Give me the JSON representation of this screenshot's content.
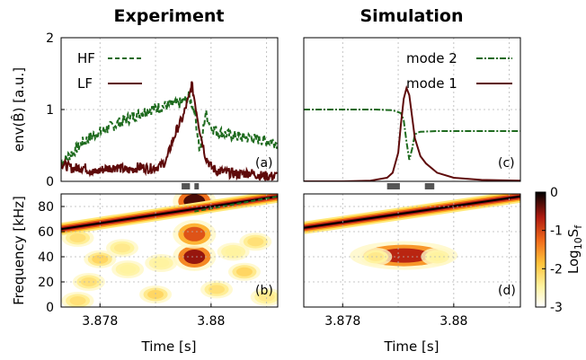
{
  "columns": [
    "Experiment",
    "Simulation"
  ],
  "chart_data": [
    {
      "id": "a",
      "type": "line",
      "panel_label": "(a)",
      "column": "Experiment",
      "ylabel": "env(B̂) [a.u.]",
      "xlabel": "",
      "xlim": [
        3.8773,
        3.8812
      ],
      "ylim": [
        0,
        2
      ],
      "yticks": [
        "0",
        "1",
        "2"
      ],
      "grid": true,
      "legend_position": "top-left",
      "legend_entries": [
        "HF",
        "LF"
      ],
      "series": [
        {
          "name": "HF",
          "color": "#1e6b1e",
          "dash": "5,3",
          "x": [
            3.8773,
            3.8775,
            3.8777,
            3.8779,
            3.8781,
            3.8783,
            3.8785,
            3.8787,
            3.8789,
            3.8791,
            3.8793,
            3.8795,
            3.8796,
            3.8797,
            3.8798,
            3.8799,
            3.88,
            3.8801,
            3.8803,
            3.8805,
            3.8807,
            3.8809,
            3.8811,
            3.8812
          ],
          "y": [
            0.25,
            0.4,
            0.55,
            0.65,
            0.72,
            0.8,
            0.87,
            0.94,
            1.0,
            1.04,
            1.07,
            1.1,
            1.18,
            1.0,
            0.4,
            0.95,
            0.75,
            0.7,
            0.65,
            0.62,
            0.6,
            0.58,
            0.55,
            0.53
          ]
        },
        {
          "name": "LF",
          "color": "#5e0a0a",
          "dash": "",
          "x": [
            3.8773,
            3.8775,
            3.8777,
            3.8779,
            3.8781,
            3.8783,
            3.8785,
            3.8787,
            3.8789,
            3.8791,
            3.8792,
            3.8793,
            3.8794,
            3.8795,
            3.87955,
            3.8796,
            3.87965,
            3.8797,
            3.8798,
            3.8799,
            3.88,
            3.8801,
            3.8803,
            3.8805,
            3.8807,
            3.8809,
            3.8811,
            3.8812
          ],
          "y": [
            0.25,
            0.18,
            0.2,
            0.12,
            0.18,
            0.2,
            0.15,
            0.2,
            0.18,
            0.22,
            0.3,
            0.55,
            0.75,
            0.9,
            1.05,
            1.15,
            1.35,
            1.15,
            0.7,
            0.35,
            0.2,
            0.15,
            0.12,
            0.1,
            0.12,
            0.08,
            0.07,
            0.08
          ]
        }
      ]
    },
    {
      "id": "c",
      "type": "line",
      "panel_label": "(c)",
      "column": "Simulation",
      "ylabel": "",
      "xlabel": "",
      "xlim": [
        3.8773,
        3.8812
      ],
      "ylim": [
        0,
        2
      ],
      "grid": true,
      "legend_position": "top-right",
      "legend_entries": [
        "mode 2",
        "mode 1"
      ],
      "series": [
        {
          "name": "mode 2",
          "color": "#1e6b1e",
          "dash": "7,2,2,2",
          "x": [
            3.8773,
            3.878,
            3.8786,
            3.8789,
            3.87905,
            3.8791,
            3.87915,
            3.8792,
            3.87925,
            3.8793,
            3.87935,
            3.8794,
            3.8797,
            3.8805,
            3.8812
          ],
          "y": [
            1.0,
            1.0,
            1.0,
            0.99,
            0.95,
            0.85,
            0.55,
            0.3,
            0.45,
            0.65,
            0.68,
            0.69,
            0.7,
            0.7,
            0.7
          ]
        },
        {
          "name": "mode 1",
          "color": "#5e0a0a",
          "dash": "",
          "x": [
            3.8773,
            3.878,
            3.8785,
            3.8788,
            3.8789,
            3.879,
            3.87905,
            3.8791,
            3.87915,
            3.8792,
            3.87925,
            3.8793,
            3.8794,
            3.8795,
            3.8797,
            3.88,
            3.8805,
            3.8812
          ],
          "y": [
            0.0,
            0.0,
            0.01,
            0.05,
            0.12,
            0.4,
            0.8,
            1.15,
            1.3,
            1.2,
            0.9,
            0.6,
            0.35,
            0.25,
            0.12,
            0.05,
            0.02,
            0.01
          ]
        }
      ]
    },
    {
      "id": "b",
      "type": "heatmap",
      "panel_label": "(b)",
      "column": "Experiment",
      "xlabel": "Time [s]",
      "ylabel": "Frequency [kHz]",
      "xlim": [
        3.8773,
        3.8812
      ],
      "ylim": [
        0,
        90
      ],
      "xticks": [
        "3.878",
        "3.88"
      ],
      "yticks": [
        "0",
        "20",
        "40",
        "60",
        "80"
      ],
      "grid": true,
      "colorscale": [
        "#ffffff",
        "#ffe97a",
        "#ffb020",
        "#e0501a",
        "#a01010",
        "#000000"
      ],
      "ridge": {
        "x": [
          3.8773,
          3.8812
        ],
        "y": [
          62,
          88
        ]
      },
      "overlay_line": {
        "x": [
          3.8797,
          3.8812
        ],
        "y": [
          76,
          88
        ],
        "color": "#1e6b1e"
      },
      "blobs": [
        {
          "x": 3.8797,
          "y": 40,
          "level": -0.6
        },
        {
          "x": 3.8797,
          "y": 58,
          "level": -1.2
        },
        {
          "x": 3.8797,
          "y": 84,
          "level": -0.3
        },
        {
          "x": 3.8778,
          "y": 20,
          "level": -2.3
        },
        {
          "x": 3.879,
          "y": 10,
          "level": -2.2
        },
        {
          "x": 3.8806,
          "y": 28,
          "level": -2.2
        },
        {
          "x": 3.8784,
          "y": 47,
          "level": -2.4
        },
        {
          "x": 3.8808,
          "y": 52,
          "level": -2.3
        },
        {
          "x": 3.8785,
          "y": 30,
          "level": -2.5
        },
        {
          "x": 3.8801,
          "y": 14,
          "level": -2.3
        },
        {
          "x": 3.8776,
          "y": 5,
          "level": -2.3
        },
        {
          "x": 3.881,
          "y": 8,
          "level": -2.4
        },
        {
          "x": 3.8791,
          "y": 35,
          "level": -2.5
        },
        {
          "x": 3.878,
          "y": 38,
          "level": -2.2
        },
        {
          "x": 3.8804,
          "y": 44,
          "level": -2.5
        },
        {
          "x": 3.8776,
          "y": 55,
          "level": -2.3
        }
      ]
    },
    {
      "id": "d",
      "type": "heatmap",
      "panel_label": "(d)",
      "column": "Simulation",
      "xlabel": "Time [s]",
      "ylabel": "",
      "xlim": [
        3.8773,
        3.8812
      ],
      "ylim": [
        0,
        90
      ],
      "xticks": [
        "3.878",
        "3.88"
      ],
      "grid": true,
      "ridge": {
        "x": [
          3.8773,
          3.8812
        ],
        "y": [
          63,
          88
        ]
      },
      "blobs": [
        {
          "x": 3.8791,
          "y": 41,
          "level": -0.8
        },
        {
          "x": 3.8786,
          "y": 40,
          "level": -2.4
        },
        {
          "x": 3.8797,
          "y": 40,
          "level": -2.5
        }
      ]
    }
  ],
  "colorbar": {
    "label": "Log10Sf",
    "ticks": [
      "0",
      "-1",
      "-2",
      "-3"
    ],
    "range": [
      -3,
      0
    ]
  },
  "time_markers": [
    {
      "column": "Experiment",
      "ranges": [
        [
          3.87947,
          3.87962
        ],
        [
          3.8797,
          3.87978
        ]
      ]
    },
    {
      "column": "Simulation",
      "ranges": [
        [
          3.8788,
          3.87903
        ],
        [
          3.87948,
          3.87965
        ]
      ]
    }
  ]
}
